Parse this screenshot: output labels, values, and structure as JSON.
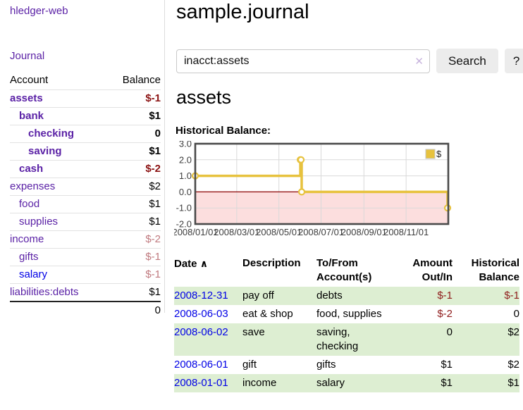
{
  "app": {
    "brand": "hledger-web",
    "nav_journal": "Journal"
  },
  "sidebar": {
    "table": {
      "account_header": "Account",
      "balance_header": "Balance",
      "rows": [
        {
          "account": "assets",
          "balance": "$-1",
          "indent": 0,
          "bold": true,
          "balance_class": "neg-strong"
        },
        {
          "account": "bank",
          "balance": "$1",
          "indent": 1,
          "bold": true,
          "balance_class": ""
        },
        {
          "account": "checking",
          "balance": "0",
          "indent": 2,
          "bold": true,
          "balance_class": ""
        },
        {
          "account": "saving",
          "balance": "$1",
          "indent": 2,
          "bold": true,
          "balance_class": ""
        },
        {
          "account": "cash",
          "balance": "$-2",
          "indent": 1,
          "bold": true,
          "balance_class": "neg-strong"
        },
        {
          "account": "expenses",
          "balance": "$2",
          "indent": 0,
          "bold": false,
          "balance_class": ""
        },
        {
          "account": "food",
          "balance": "$1",
          "indent": 1,
          "bold": false,
          "balance_class": ""
        },
        {
          "account": "supplies",
          "balance": "$1",
          "indent": 1,
          "bold": false,
          "balance_class": ""
        },
        {
          "account": "income",
          "balance": "$-2",
          "indent": 0,
          "bold": false,
          "balance_class": "neg-light"
        },
        {
          "account": "gifts",
          "balance": "$-1",
          "indent": 1,
          "bold": false,
          "balance_class": "neg-light"
        },
        {
          "account": "salary",
          "balance": "$-1",
          "indent": 1,
          "bold": false,
          "balance_class": "neg-light",
          "link_class": "blue"
        },
        {
          "account": "liabilities:debts",
          "balance": "$1",
          "indent": 0,
          "bold": false,
          "balance_class": ""
        }
      ],
      "total": "0"
    }
  },
  "main": {
    "title": "sample.journal",
    "search": {
      "value": "inacct:assets",
      "clear_icon": "✕",
      "button": "Search",
      "help_button": "?"
    },
    "account_heading": "assets"
  },
  "chart_data": {
    "type": "line",
    "title": "Historical Balance:",
    "step": true,
    "series": [
      {
        "name": "$",
        "points": [
          [
            "2008-01-01",
            1
          ],
          [
            "2008-06-01",
            2
          ],
          [
            "2008-06-02",
            2
          ],
          [
            "2008-06-03",
            0
          ],
          [
            "2008-12-31",
            -1
          ]
        ]
      }
    ],
    "ylim": [
      -2,
      3
    ],
    "yticks": [
      3.0,
      2.0,
      1.0,
      0.0,
      -1.0,
      -2.0
    ],
    "ytick_labels": [
      "3.0",
      "2.0",
      "1.0",
      "0.0",
      "-1.0",
      "-2.0"
    ],
    "xticks": [
      "2008-01-01",
      "2008-03-01",
      "2008-05-01",
      "2008-07-01",
      "2008-09-01",
      "2008-11-01"
    ],
    "xtick_labels": [
      "2008/01/01",
      "2008/03/01",
      "2008/05/01",
      "2008/07/01",
      "2008/09/01",
      "2008/11/01"
    ],
    "x_range": [
      "2008-01-01",
      "2008-12-31"
    ],
    "legend": "$",
    "legend_position": "top-right",
    "grid": true,
    "colors": {
      "line": "#e7c23e",
      "negative_fill": "#fcdede",
      "zero_line": "#8b0000",
      "grid": "#d9d9d9",
      "border": "#4a4a4a",
      "tick_text": "#3d3d3d"
    }
  },
  "register": {
    "headers": {
      "date": "Date",
      "sort_indicator": "∧",
      "description": "Description",
      "tofrom": "To/From Account(s)",
      "amount": "Amount Out/In",
      "balance": "Historical Balance"
    },
    "rows": [
      {
        "date": "2008-12-31",
        "description": "pay off",
        "accounts": "debts",
        "amount": "$-1",
        "balance": "$-1",
        "amount_neg": true,
        "balance_neg": true,
        "shade": true
      },
      {
        "date": "2008-06-03",
        "description": "eat & shop",
        "accounts": "food, supplies",
        "amount": "$-2",
        "balance": "0",
        "amount_neg": true,
        "balance_neg": false,
        "shade": false
      },
      {
        "date": "2008-06-02",
        "description": "save",
        "accounts": "saving, checking",
        "amount": "0",
        "balance": "$2",
        "amount_neg": false,
        "balance_neg": false,
        "shade": true
      },
      {
        "date": "2008-06-01",
        "description": "gift",
        "accounts": "gifts",
        "amount": "$1",
        "balance": "$2",
        "amount_neg": false,
        "balance_neg": false,
        "shade": false
      },
      {
        "date": "2008-01-01",
        "description": "income",
        "accounts": "salary",
        "amount": "$1",
        "balance": "$1",
        "amount_neg": false,
        "balance_neg": false,
        "shade": true
      }
    ]
  }
}
